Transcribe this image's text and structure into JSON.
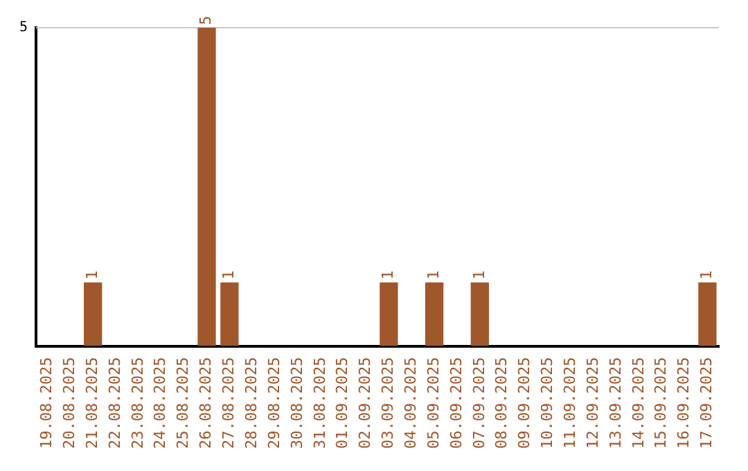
{
  "chart_data": {
    "type": "bar",
    "categories": [
      "19.08.2025",
      "20.08.2025",
      "21.08.2025",
      "22.08.2025",
      "23.08.2025",
      "24.08.2025",
      "25.08.2025",
      "26.08.2025",
      "27.08.2025",
      "28.08.2025",
      "29.08.2025",
      "30.08.2025",
      "31.08.2025",
      "01.09.2025",
      "02.09.2025",
      "03.09.2025",
      "04.09.2025",
      "05.09.2025",
      "06.09.2025",
      "07.09.2025",
      "08.09.2025",
      "09.09.2025",
      "10.09.2025",
      "11.09.2025",
      "12.09.2025",
      "13.09.2025",
      "14.09.2025",
      "15.09.2025",
      "16.09.2025",
      "17.09.2025"
    ],
    "values": [
      0,
      0,
      1,
      0,
      0,
      0,
      0,
      5,
      1,
      0,
      0,
      0,
      0,
      0,
      0,
      1,
      0,
      1,
      0,
      1,
      0,
      0,
      0,
      0,
      0,
      0,
      0,
      0,
      0,
      1
    ],
    "value_labels": [
      null,
      null,
      "1",
      null,
      null,
      null,
      null,
      "5",
      "1",
      null,
      null,
      null,
      null,
      null,
      null,
      "1",
      null,
      "1",
      null,
      "1",
      null,
      null,
      null,
      null,
      null,
      null,
      null,
      null,
      null,
      "1"
    ],
    "color": "#a0572b",
    "ylim": [
      0,
      5
    ],
    "yticks": [
      5
    ],
    "ref_lines": [
      {
        "axis": "y",
        "value": 5,
        "color": "#c8c8c8"
      }
    ],
    "legend": false
  }
}
